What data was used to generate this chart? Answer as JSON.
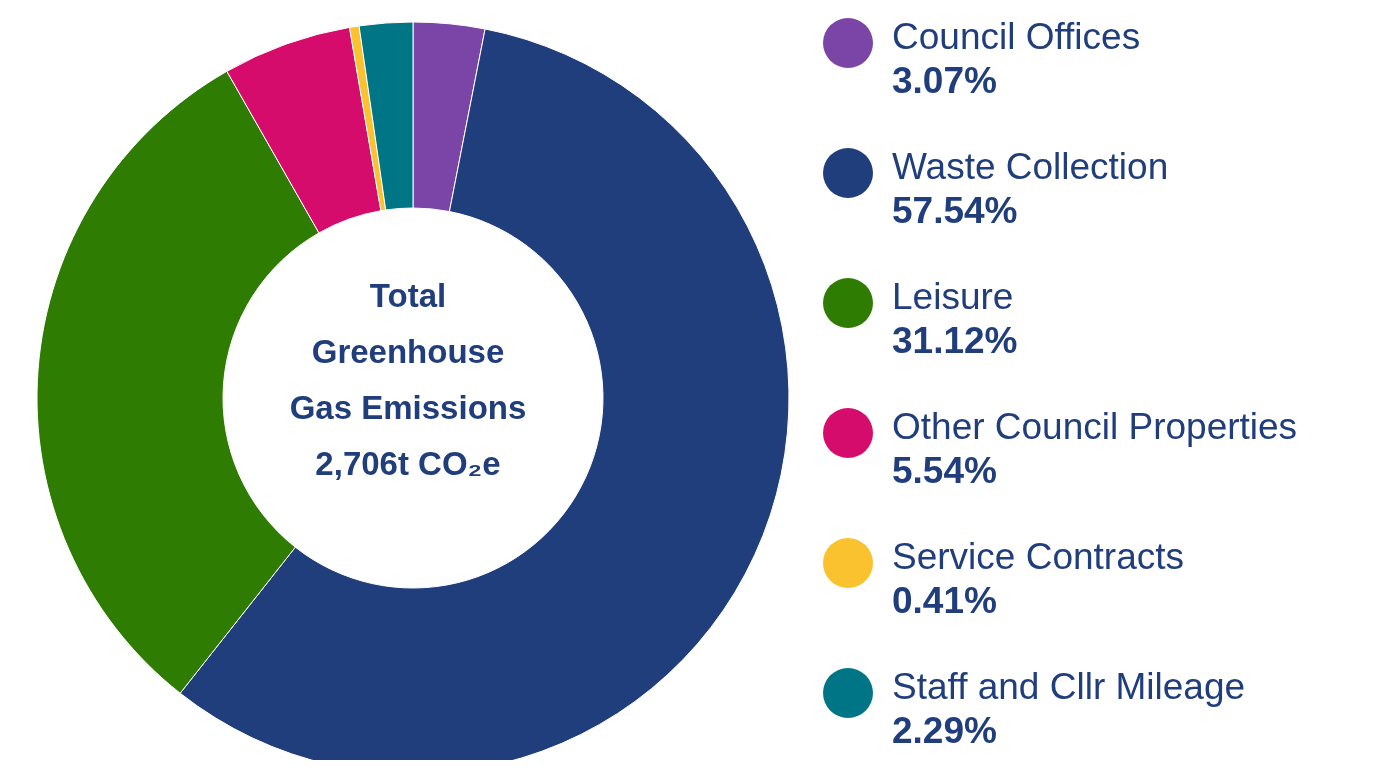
{
  "chart_data": {
    "type": "donut",
    "title": "Total Greenhouse Gas Emissions 2,706t CO₂e",
    "categories": [
      "Council Offices",
      "Waste Collection",
      "Leisure",
      "Other Council Properties",
      "Service Contracts",
      "Staff and Cllr Mileage"
    ],
    "values": [
      3.07,
      57.54,
      31.12,
      5.54,
      0.41,
      2.29
    ],
    "value_labels": [
      "3.07%",
      "57.54%",
      "31.12%",
      "5.54%",
      "0.41%",
      "2.29%"
    ],
    "colors": [
      "#7b45a8",
      "#203d7c",
      "#2e7d02",
      "#d50c6c",
      "#f9c22e",
      "#007585"
    ],
    "legend": "right"
  }
}
